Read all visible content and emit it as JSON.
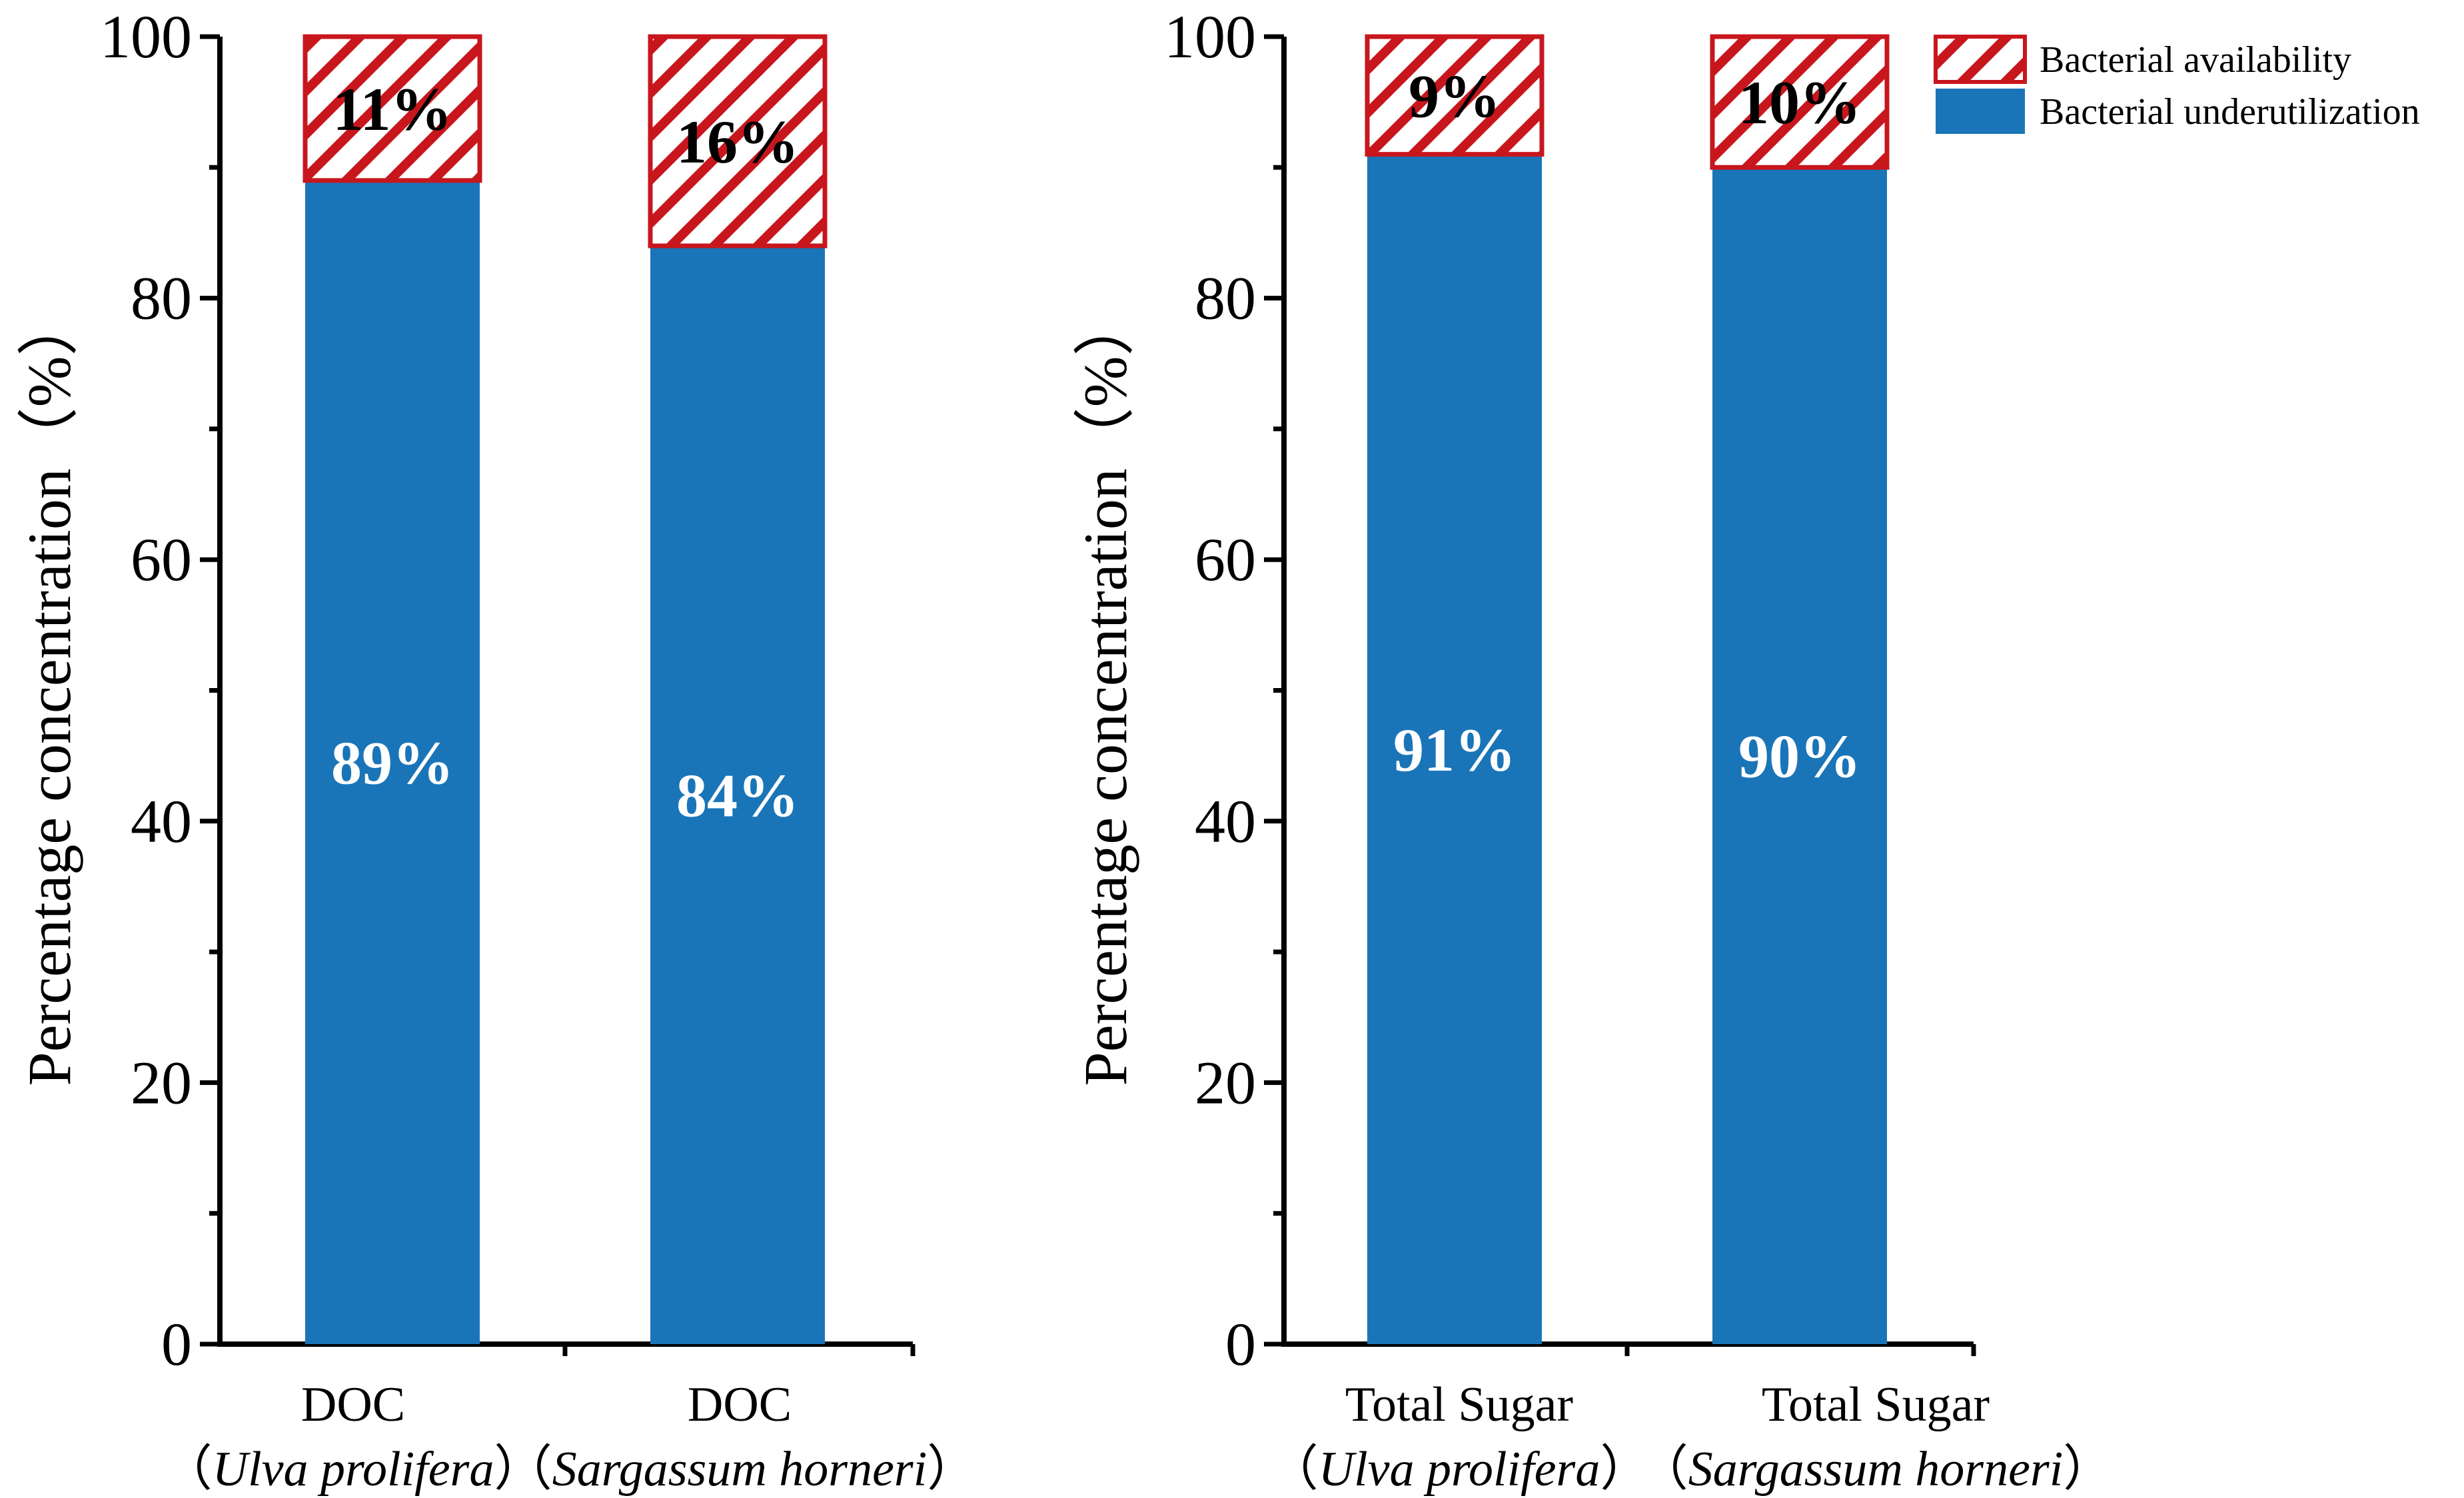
{
  "chart_data": [
    {
      "type": "bar",
      "stacked": true,
      "ylabel": "Percentage concentration（%）",
      "ylim": [
        0,
        100
      ],
      "yticks": [
        "0",
        "20",
        "40",
        "60",
        "80",
        "100"
      ],
      "categories": [
        {
          "line1": "DOC",
          "line2_open": "（",
          "line2_name": "Ulva prolifera",
          "line2_close": "）"
        },
        {
          "line1": "DOC",
          "line2_open": "（",
          "line2_name": "Sargassum horneri",
          "line2_close": "）"
        }
      ],
      "series": [
        {
          "name": "Bacterial underutilization",
          "values": [
            89,
            84
          ],
          "labels": [
            "89%",
            "84%"
          ]
        },
        {
          "name": "Bacterial availability",
          "values": [
            11,
            16
          ],
          "labels": [
            "11%",
            "16%"
          ]
        }
      ]
    },
    {
      "type": "bar",
      "stacked": true,
      "ylabel": "Percentage concentration（%）",
      "ylim": [
        0,
        100
      ],
      "yticks": [
        "0",
        "20",
        "40",
        "60",
        "80",
        "100"
      ],
      "categories": [
        {
          "line1": "Total Sugar",
          "line2_open": "（",
          "line2_name": "Ulva prolifera",
          "line2_close": "）"
        },
        {
          "line1": "Total Sugar",
          "line2_open": "（",
          "line2_name": "Sargassum horneri",
          "line2_close": "）"
        }
      ],
      "series": [
        {
          "name": "Bacterial underutilization",
          "values": [
            91,
            90
          ],
          "labels": [
            "91%",
            "90%"
          ]
        },
        {
          "name": "Bacterial availability",
          "values": [
            9,
            10
          ],
          "labels": [
            "9%",
            "10%"
          ]
        }
      ]
    }
  ],
  "legend": {
    "position": "top-right",
    "items": [
      {
        "name": "Bacterial availability",
        "style": "hatched"
      },
      {
        "name": "Bacterial underutilization",
        "style": "solid"
      }
    ]
  },
  "colors": {
    "solid": "#1a75b8",
    "hatch": "#c8161d",
    "hatch_bg": "#ffffff",
    "top_label": "#000000",
    "bottom_label": "#ffffff"
  }
}
